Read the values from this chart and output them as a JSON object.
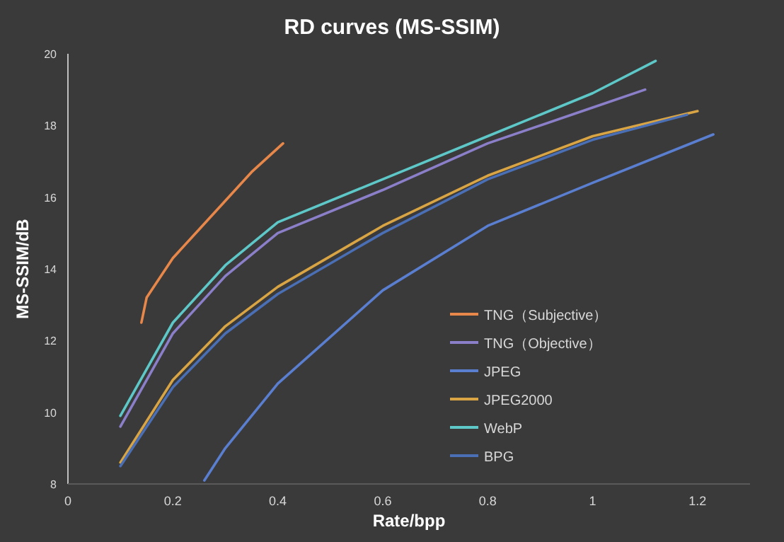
{
  "chart_data": {
    "type": "line",
    "title": "RD curves (MS-SSIM)",
    "xlabel": "Rate/bpp",
    "ylabel": "MS-SSIM/dB",
    "xlim": [
      0,
      1.3
    ],
    "xticks": [
      0,
      0.2,
      0.4,
      0.6,
      0.8,
      1,
      1.2
    ],
    "ylim": [
      8,
      20
    ],
    "yticks": [
      8,
      10,
      12,
      14,
      16,
      18,
      20
    ],
    "grid": false,
    "legend": "bottom right",
    "marker": "none",
    "line_style": "solid",
    "series": [
      {
        "name": "TNG（Subjective）",
        "color": "#e8874a",
        "x": [
          0.14,
          0.15,
          0.2,
          0.25,
          0.3,
          0.35,
          0.41
        ],
        "values": [
          12.5,
          13.2,
          14.3,
          15.1,
          15.9,
          16.7,
          17.5
        ]
      },
      {
        "name": "TNG（Objective）",
        "color": "#8a7fc8",
        "x": [
          0.1,
          0.2,
          0.3,
          0.4,
          0.6,
          0.8,
          1.0,
          1.1
        ],
        "values": [
          9.6,
          12.2,
          13.8,
          15.0,
          16.2,
          17.5,
          18.5,
          19.0
        ]
      },
      {
        "name": "JPEG",
        "color": "#5b7fd0",
        "x": [
          0.26,
          0.3,
          0.4,
          0.6,
          0.8,
          1.0,
          1.23
        ],
        "values": [
          8.1,
          9.0,
          10.8,
          13.4,
          15.2,
          16.4,
          17.75
        ]
      },
      {
        "name": "JPEG2000",
        "color": "#d9a544",
        "x": [
          0.1,
          0.2,
          0.3,
          0.4,
          0.6,
          0.8,
          1.0,
          1.2
        ],
        "values": [
          8.6,
          10.9,
          12.4,
          13.5,
          15.2,
          16.6,
          17.7,
          18.4
        ]
      },
      {
        "name": "WebP",
        "color": "#5ec8c8",
        "x": [
          0.1,
          0.2,
          0.3,
          0.4,
          0.6,
          0.8,
          1.0,
          1.12
        ],
        "values": [
          9.9,
          12.5,
          14.1,
          15.3,
          16.5,
          17.7,
          18.9,
          19.8
        ]
      },
      {
        "name": "BPG",
        "color": "#4a6fb5",
        "x": [
          0.1,
          0.2,
          0.3,
          0.4,
          0.6,
          0.8,
          1.0,
          1.18
        ],
        "values": [
          8.5,
          10.7,
          12.2,
          13.3,
          15.0,
          16.5,
          17.6,
          18.3
        ]
      }
    ]
  }
}
